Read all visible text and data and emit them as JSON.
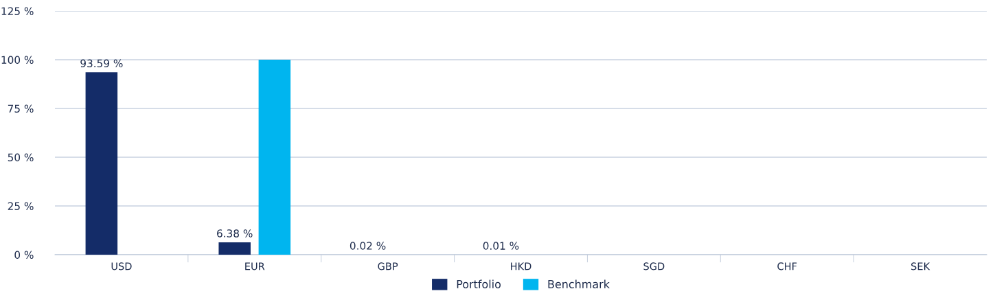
{
  "chart_data": {
    "type": "bar",
    "categories": [
      "USD",
      "EUR",
      "GBP",
      "HKD",
      "SGD",
      "CHF",
      "SEK"
    ],
    "series": [
      {
        "name": "Portfolio",
        "color": "#142c68",
        "values": [
          93.59,
          6.38,
          0.02,
          0.01,
          null,
          null,
          null
        ],
        "value_labels": [
          "93.59 %",
          "6.38 %",
          "0.02 %",
          "0.01 %",
          null,
          null,
          null
        ]
      },
      {
        "name": "Benchmark",
        "color": "#00b5ef",
        "values": [
          null,
          100,
          null,
          null,
          null,
          null,
          null
        ]
      }
    ],
    "ylim": [
      0,
      125
    ],
    "yticks": [
      {
        "value": 0,
        "label": "0 %"
      },
      {
        "value": 25,
        "label": "25 %"
      },
      {
        "value": 50,
        "label": "50 %"
      },
      {
        "value": 75,
        "label": "75 %"
      },
      {
        "value": 100,
        "label": "100 %"
      },
      {
        "value": 125,
        "label": "125 %"
      }
    ],
    "grid": "y",
    "legend": "bottom"
  }
}
